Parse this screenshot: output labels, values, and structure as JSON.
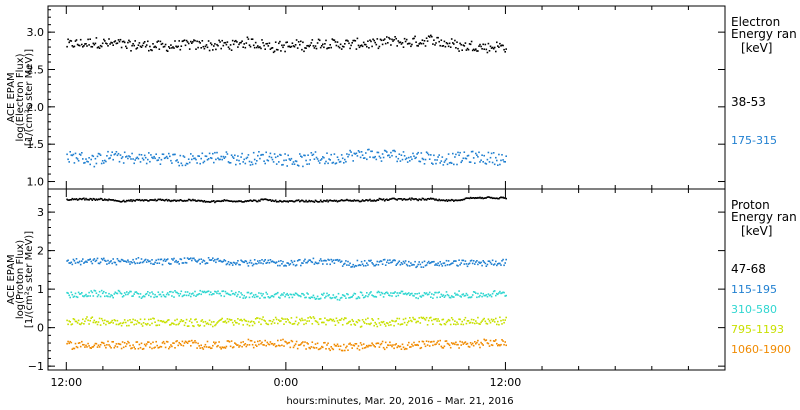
{
  "chart_data": [
    {
      "type": "scatter",
      "panel": "electron",
      "ylabel_lines": [
        "ACE EPAM",
        "log(Electron Flux)",
        "[1/(cm²s ster MeV)]"
      ],
      "ylim": [
        0.9,
        3.35
      ],
      "yticks": [
        1.0,
        1.5,
        2.0,
        2.5,
        3.0
      ],
      "ytick_labels": [
        "1.0",
        "1.5",
        "2.0",
        "2.5",
        "3.0"
      ],
      "legend_title_lines": [
        "Electron",
        "Energy ran"
      ],
      "legend_unit": "[keV]",
      "series": [
        {
          "name": "38-53",
          "color": "#000000",
          "base": 2.84,
          "amplitude": 0.07,
          "x_end_hours": 24
        },
        {
          "name": "175-315",
          "color": "#1f7fd0",
          "base": 1.32,
          "amplitude": 0.08,
          "x_end_hours": 24
        }
      ]
    },
    {
      "type": "scatter",
      "panel": "proton",
      "ylabel_lines": [
        "ACE EPAM",
        "log(Proton Flux)",
        "[1/(cm²s ster MeV)]"
      ],
      "ylim": [
        -1.1,
        3.6
      ],
      "yticks": [
        -1,
        0,
        1,
        2,
        3
      ],
      "ytick_labels": [
        "−1",
        "0",
        "1",
        "2",
        "3"
      ],
      "legend_title_lines": [
        "Proton",
        "Energy ran"
      ],
      "legend_unit": "[keV]",
      "series": [
        {
          "name": "47-68",
          "color": "#000000",
          "base": 3.33,
          "amplitude": 0.02,
          "x_end_hours": 24
        },
        {
          "name": "115-195",
          "color": "#1f7fd0",
          "base": 1.72,
          "amplitude": 0.08,
          "x_end_hours": 24
        },
        {
          "name": "310-580",
          "color": "#2fd6d0",
          "base": 0.88,
          "amplitude": 0.08,
          "x_end_hours": 24
        },
        {
          "name": "795-1193",
          "color": "#c8e000",
          "base": 0.18,
          "amplitude": 0.1,
          "x_end_hours": 24
        },
        {
          "name": "1060-1900",
          "color": "#f08a00",
          "base": -0.42,
          "amplitude": 0.1,
          "x_end_hours": 24
        }
      ]
    }
  ],
  "x_axis": {
    "xlim_hours": [
      -1,
      36
    ],
    "major_ticks_hours": [
      0,
      12,
      24
    ],
    "major_tick_labels": [
      "12:00",
      "0:00",
      "12:00"
    ],
    "minor_ticks_hours": [
      2,
      4,
      6,
      8,
      10,
      14,
      16,
      18,
      20,
      22,
      26,
      28,
      30,
      32,
      34
    ],
    "xlabel": "hours:minutes, Mar. 20, 2016 – Mar. 21, 2016"
  }
}
